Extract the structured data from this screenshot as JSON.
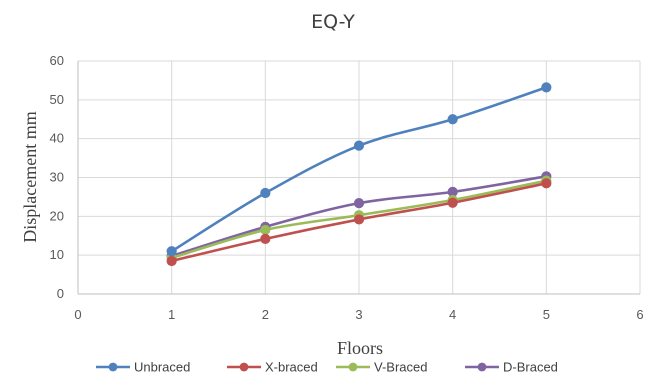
{
  "chart_data": {
    "type": "line",
    "title": "EQ-Y",
    "xlabel": "Floors",
    "ylabel": "Displacement mm",
    "xlim": [
      0,
      6
    ],
    "ylim": [
      0,
      60
    ],
    "xticks": [
      0,
      1,
      2,
      3,
      4,
      5,
      6
    ],
    "yticks": [
      0,
      10,
      20,
      30,
      40,
      50,
      60
    ],
    "grid": "vertical and horizontal",
    "legend_position": "bottom",
    "x": [
      1,
      2,
      3,
      4,
      5
    ],
    "series": [
      {
        "name": "Unbraced",
        "color": "#4f81bd",
        "values": [
          11,
          26,
          38.2,
          45,
          53.2
        ]
      },
      {
        "name": "X-braced",
        "color": "#c0504d",
        "values": [
          8.5,
          14.2,
          19.2,
          23.5,
          28.5
        ]
      },
      {
        "name": "V-Braced",
        "color": "#9bbb59",
        "values": [
          9.3,
          16.5,
          20.3,
          24.2,
          29.2
        ]
      },
      {
        "name": "D-Braced",
        "color": "#8064a2",
        "values": [
          9.8,
          17.3,
          23.4,
          26.3,
          30.3
        ]
      }
    ]
  }
}
